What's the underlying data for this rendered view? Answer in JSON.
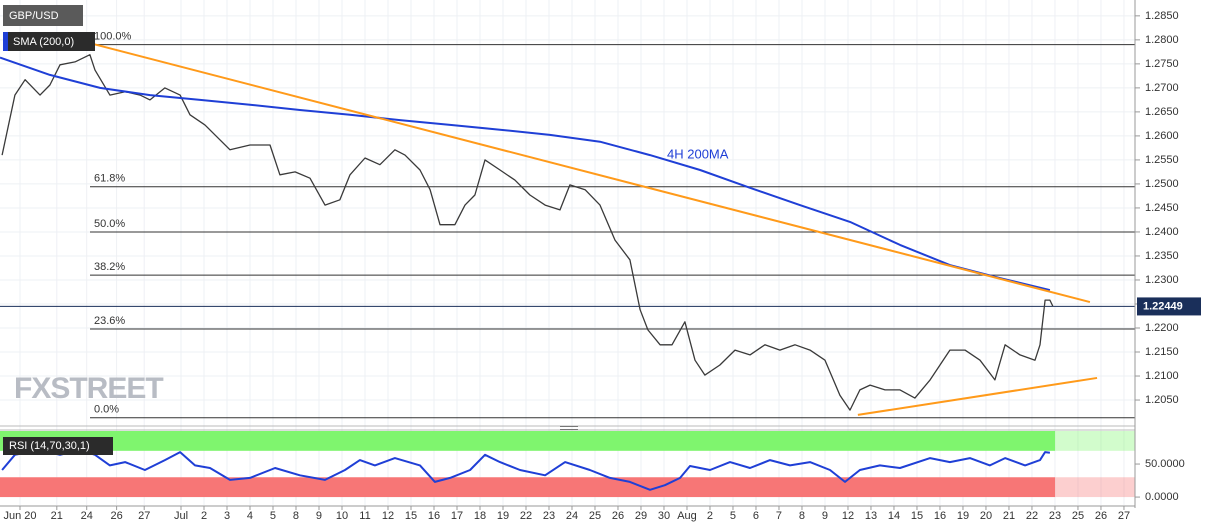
{
  "chart_data": [
    {
      "type": "line",
      "legend": [
        "GBP/USD",
        "SMA (200,0)"
      ],
      "annotation": "4H 200MA",
      "watermark": "FXSTREET",
      "xlim": [
        -0.87,
        48.48
      ],
      "ylim": [
        1.1998,
        1.2883
      ],
      "yticks": [
        {
          "value": 1.285,
          "label": "1.2850"
        },
        {
          "value": 1.28,
          "label": "1.2800"
        },
        {
          "value": 1.275,
          "label": "1.2750"
        },
        {
          "value": 1.27,
          "label": "1.2700"
        },
        {
          "value": 1.265,
          "label": "1.2650"
        },
        {
          "value": 1.26,
          "label": "1.2600"
        },
        {
          "value": 1.255,
          "label": "1.2550"
        },
        {
          "value": 1.25,
          "label": "1.2500"
        },
        {
          "value": 1.245,
          "label": "1.2450"
        },
        {
          "value": 1.24,
          "label": "1.2400"
        },
        {
          "value": 1.235,
          "label": "1.2350"
        },
        {
          "value": 1.23,
          "label": "1.2300"
        },
        {
          "value": 1.225,
          "label": "1.2250"
        },
        {
          "value": 1.22,
          "label": "1.2200"
        },
        {
          "value": 1.215,
          "label": "1.2150"
        },
        {
          "value": 1.21,
          "label": "1.2100"
        },
        {
          "value": 1.205,
          "label": "1.2050"
        }
      ],
      "grid": true,
      "series": [
        {
          "name": "GBP/USD",
          "color": "#3a3a3a",
          "x": [
            -0.78,
            -0.22,
            0.22,
            0.87,
            1.3,
            1.74,
            2.39,
            3.04,
            3.26,
            3.91,
            4.57,
            5.22,
            5.65,
            6.3,
            6.96,
            7.39,
            8.04,
            8.48,
            9.13,
            10.0,
            10.87,
            11.3,
            11.96,
            12.61,
            13.26,
            13.91,
            14.35,
            15.0,
            15.65,
            16.3,
            16.74,
            17.39,
            17.83,
            18.26,
            18.91,
            19.35,
            19.78,
            20.22,
            20.87,
            21.52,
            22.17,
            22.83,
            23.48,
            23.91,
            24.57,
            25.22,
            25.87,
            26.52,
            26.96,
            27.3,
            27.83,
            28.35,
            28.91,
            29.35,
            29.78,
            30.43,
            31.09,
            31.74,
            32.39,
            33.04,
            33.7,
            34.35,
            35.0,
            35.65,
            36.09,
            36.52,
            36.96,
            37.61,
            38.26,
            38.91,
            39.57,
            40.0,
            40.43,
            41.09,
            41.74,
            42.39,
            42.83,
            43.48,
            44.13,
            44.35,
            44.57,
            44.78,
            44.91
          ],
          "values": [
            1.256,
            1.2685,
            1.2717,
            1.2685,
            1.2706,
            1.2748,
            1.2754,
            1.2769,
            1.2737,
            1.2685,
            1.2692,
            1.2685,
            1.2675,
            1.27,
            1.2685,
            1.2644,
            1.2623,
            1.2602,
            1.2571,
            1.2581,
            1.2581,
            1.2519,
            1.2525,
            1.2512,
            1.2456,
            1.2467,
            1.2519,
            1.2554,
            1.254,
            1.2571,
            1.256,
            1.2529,
            1.2488,
            1.2415,
            1.2415,
            1.2456,
            1.2477,
            1.255,
            1.2529,
            1.2508,
            1.2477,
            1.2456,
            1.2446,
            1.2498,
            1.2488,
            1.2456,
            1.2383,
            1.2342,
            1.2238,
            1.2196,
            1.2165,
            1.2165,
            1.2213,
            1.2133,
            1.2102,
            1.2123,
            1.2154,
            1.2144,
            1.2165,
            1.2154,
            1.2165,
            1.2154,
            1.2133,
            1.206,
            1.2029,
            1.2071,
            1.2081,
            1.2071,
            1.2071,
            1.2054,
            1.2092,
            1.2123,
            1.2154,
            1.2154,
            1.2133,
            1.2092,
            1.2165,
            1.2144,
            1.2133,
            1.2165,
            1.2258,
            1.2258,
            1.2245
          ]
        },
        {
          "name": "SMA (200,0)",
          "color": "#1f3fd6",
          "x": [
            -0.87,
            1.3,
            3.48,
            5.65,
            7.83,
            10.0,
            12.17,
            14.35,
            16.52,
            18.7,
            20.87,
            23.04,
            25.22,
            27.39,
            29.57,
            31.74,
            33.91,
            36.09,
            38.26,
            40.43,
            42.61,
            44.78
          ],
          "values": [
            1.2763,
            1.2727,
            1.27,
            1.2685,
            1.2675,
            1.2665,
            1.2654,
            1.2644,
            1.2633,
            1.2623,
            1.2613,
            1.2602,
            1.2588,
            1.256,
            1.2529,
            1.2492,
            1.2456,
            1.2421,
            1.2373,
            1.2331,
            1.2304,
            1.2279
          ]
        }
      ],
      "trendlines": [
        {
          "color": "#ff9a1a",
          "x": [
            3.13,
            46.52
          ],
          "y": [
            1.2792,
            1.2254
          ]
        },
        {
          "color": "#ff9a1a",
          "x": [
            36.43,
            46.83
          ],
          "y": [
            1.2019,
            1.2096
          ]
        }
      ],
      "levels": [
        {
          "label": "100.0%",
          "value": 1.279
        },
        {
          "label": "61.8%",
          "value": 1.2494
        },
        {
          "label": "50.0%",
          "value": 1.24
        },
        {
          "label": "38.2%",
          "value": 1.231
        },
        {
          "label": "23.6%",
          "value": 1.2198
        },
        {
          "label": "0.0%",
          "value": 1.2013
        }
      ],
      "last_price": 1.22449
    },
    {
      "type": "line",
      "title": "RSI (14,70,30,1)",
      "xlim": [
        -0.87,
        48.48
      ],
      "ylim": [
        -12,
        100
      ],
      "yticks": [
        {
          "value": 50,
          "label": "50.0000"
        },
        {
          "value": 0,
          "label": "0.0000"
        }
      ],
      "bands": [
        {
          "range": [
            70,
            100
          ],
          "color": "#7ff56e"
        },
        {
          "range": [
            0,
            30
          ],
          "color": "#f77676"
        }
      ],
      "xticks": [
        {
          "value": 0,
          "label": "Jun 20"
        },
        {
          "value": 1.6,
          "label": "21"
        },
        {
          "value": 2.9,
          "label": "24"
        },
        {
          "value": 4.2,
          "label": "26"
        },
        {
          "value": 5.4,
          "label": "27"
        },
        {
          "value": 7,
          "label": "Jul"
        },
        {
          "value": 8,
          "label": "2"
        },
        {
          "value": 9,
          "label": "3"
        },
        {
          "value": 10,
          "label": "4"
        },
        {
          "value": 11,
          "label": "5"
        },
        {
          "value": 12,
          "label": "8"
        },
        {
          "value": 13,
          "label": "9"
        },
        {
          "value": 14,
          "label": "10"
        },
        {
          "value": 15,
          "label": "11"
        },
        {
          "value": 16,
          "label": "12"
        },
        {
          "value": 17,
          "label": "15"
        },
        {
          "value": 18,
          "label": "16"
        },
        {
          "value": 19,
          "label": "17"
        },
        {
          "value": 20,
          "label": "18"
        },
        {
          "value": 21,
          "label": "19"
        },
        {
          "value": 22,
          "label": "22"
        },
        {
          "value": 23,
          "label": "23"
        },
        {
          "value": 24,
          "label": "24"
        },
        {
          "value": 25,
          "label": "25"
        },
        {
          "value": 26,
          "label": "26"
        },
        {
          "value": 27,
          "label": "29"
        },
        {
          "value": 28,
          "label": "30"
        },
        {
          "value": 29,
          "label": "Aug"
        },
        {
          "value": 30,
          "label": "2"
        },
        {
          "value": 31,
          "label": "5"
        },
        {
          "value": 32,
          "label": "6"
        },
        {
          "value": 33,
          "label": "7"
        },
        {
          "value": 34,
          "label": "8"
        },
        {
          "value": 35,
          "label": "9"
        },
        {
          "value": 36,
          "label": "12"
        },
        {
          "value": 37,
          "label": "13"
        },
        {
          "value": 38,
          "label": "14"
        },
        {
          "value": 39,
          "label": "15"
        },
        {
          "value": 40,
          "label": "16"
        },
        {
          "value": 41,
          "label": "19"
        },
        {
          "value": 42,
          "label": "20"
        },
        {
          "value": 43,
          "label": "21"
        },
        {
          "value": 44,
          "label": "22"
        },
        {
          "value": 45,
          "label": "23"
        },
        {
          "value": 46,
          "label": "25"
        },
        {
          "value": 47,
          "label": "26"
        },
        {
          "value": 48,
          "label": "27"
        }
      ],
      "series": [
        {
          "color": "#1f3fd6",
          "x": [
            -0.78,
            -0.22,
            0.87,
            1.74,
            2.61,
            3.26,
            3.91,
            4.57,
            5.43,
            6.3,
            6.96,
            7.61,
            8.26,
            9.13,
            10.0,
            11.09,
            12.17,
            13.26,
            14.13,
            14.78,
            15.43,
            16.3,
            17.39,
            18.04,
            18.7,
            19.57,
            20.22,
            20.87,
            21.74,
            22.83,
            23.7,
            24.78,
            25.65,
            26.52,
            27.39,
            28.04,
            28.7,
            29.13,
            30.0,
            30.87,
            31.74,
            32.61,
            33.48,
            34.35,
            35.22,
            35.87,
            36.52,
            37.39,
            38.26,
            39.57,
            40.43,
            41.3,
            42.17,
            42.83,
            43.7,
            44.35,
            44.57,
            44.78
          ],
          "values": [
            41,
            64,
            71,
            64,
            71,
            64,
            48,
            53,
            41,
            56,
            68,
            48,
            44,
            26,
            29,
            44,
            33,
            26,
            41,
            56,
            48,
            59,
            48,
            23,
            29,
            41,
            64,
            53,
            41,
            33,
            53,
            41,
            29,
            23,
            11,
            18,
            29,
            47,
            41,
            53,
            44,
            56,
            48,
            53,
            41,
            23,
            41,
            48,
            44,
            59,
            53,
            59,
            48,
            59,
            48,
            56,
            68,
            67
          ]
        }
      ]
    }
  ]
}
